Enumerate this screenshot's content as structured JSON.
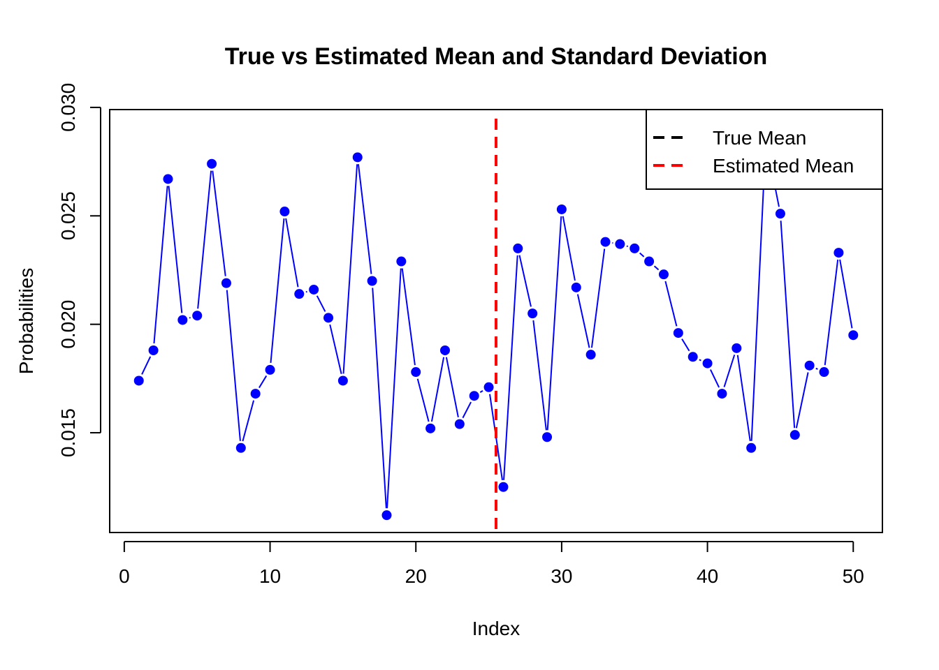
{
  "chart_data": {
    "type": "line",
    "title": "True vs Estimated Mean and Standard Deviation",
    "xlabel": "Index",
    "ylabel": "Probabilities",
    "xlim": [
      -1,
      52
    ],
    "ylim": [
      0.0104,
      0.0299
    ],
    "x_ticks": [
      0,
      10,
      20,
      30,
      40,
      50
    ],
    "x_tick_labels": [
      "0",
      "10",
      "20",
      "30",
      "40",
      "50"
    ],
    "y_ticks": [
      0.015,
      0.02,
      0.025,
      0.03
    ],
    "y_tick_labels": [
      "0.015",
      "0.020",
      "0.025",
      "0.030"
    ],
    "grid": false,
    "series": [
      {
        "color": "#0000FF",
        "x": [
          1,
          2,
          3,
          4,
          5,
          6,
          7,
          8,
          9,
          10,
          11,
          12,
          13,
          14,
          15,
          16,
          17,
          18,
          19,
          20,
          21,
          22,
          23,
          24,
          25,
          26,
          27,
          28,
          29,
          30,
          31,
          32,
          33,
          34,
          35,
          36,
          37,
          38,
          39,
          40,
          41,
          42,
          43,
          44,
          45,
          46,
          47,
          48,
          49,
          50
        ],
        "values": [
          0.0174,
          0.0188,
          0.0267,
          0.0202,
          0.0204,
          0.0274,
          0.0219,
          0.0143,
          0.0168,
          0.0179,
          0.0252,
          0.0214,
          0.0216,
          0.0203,
          0.0174,
          0.0277,
          0.022,
          0.0112,
          0.0229,
          0.0178,
          0.0152,
          0.0188,
          0.0154,
          0.0167,
          0.0171,
          0.0125,
          0.0235,
          0.0205,
          0.0148,
          0.0253,
          0.0217,
          0.0186,
          0.0238,
          0.0237,
          0.0235,
          0.0229,
          0.0223,
          0.0196,
          0.0185,
          0.0182,
          0.0168,
          0.0189,
          0.0143,
          0.0285,
          0.0251,
          0.0149,
          0.0181,
          0.0178,
          0.0233,
          0.0195
        ]
      }
    ],
    "vlines": [
      {
        "name": "Estimated Mean",
        "x": 25.5,
        "color": "#FF0000",
        "style": "dashed"
      }
    ],
    "legend": {
      "position": "top-right",
      "entries": [
        {
          "label": "True Mean",
          "color": "#000000",
          "style": "dashed"
        },
        {
          "label": "Estimated Mean",
          "color": "#FF0000",
          "style": "dashed"
        }
      ]
    }
  }
}
